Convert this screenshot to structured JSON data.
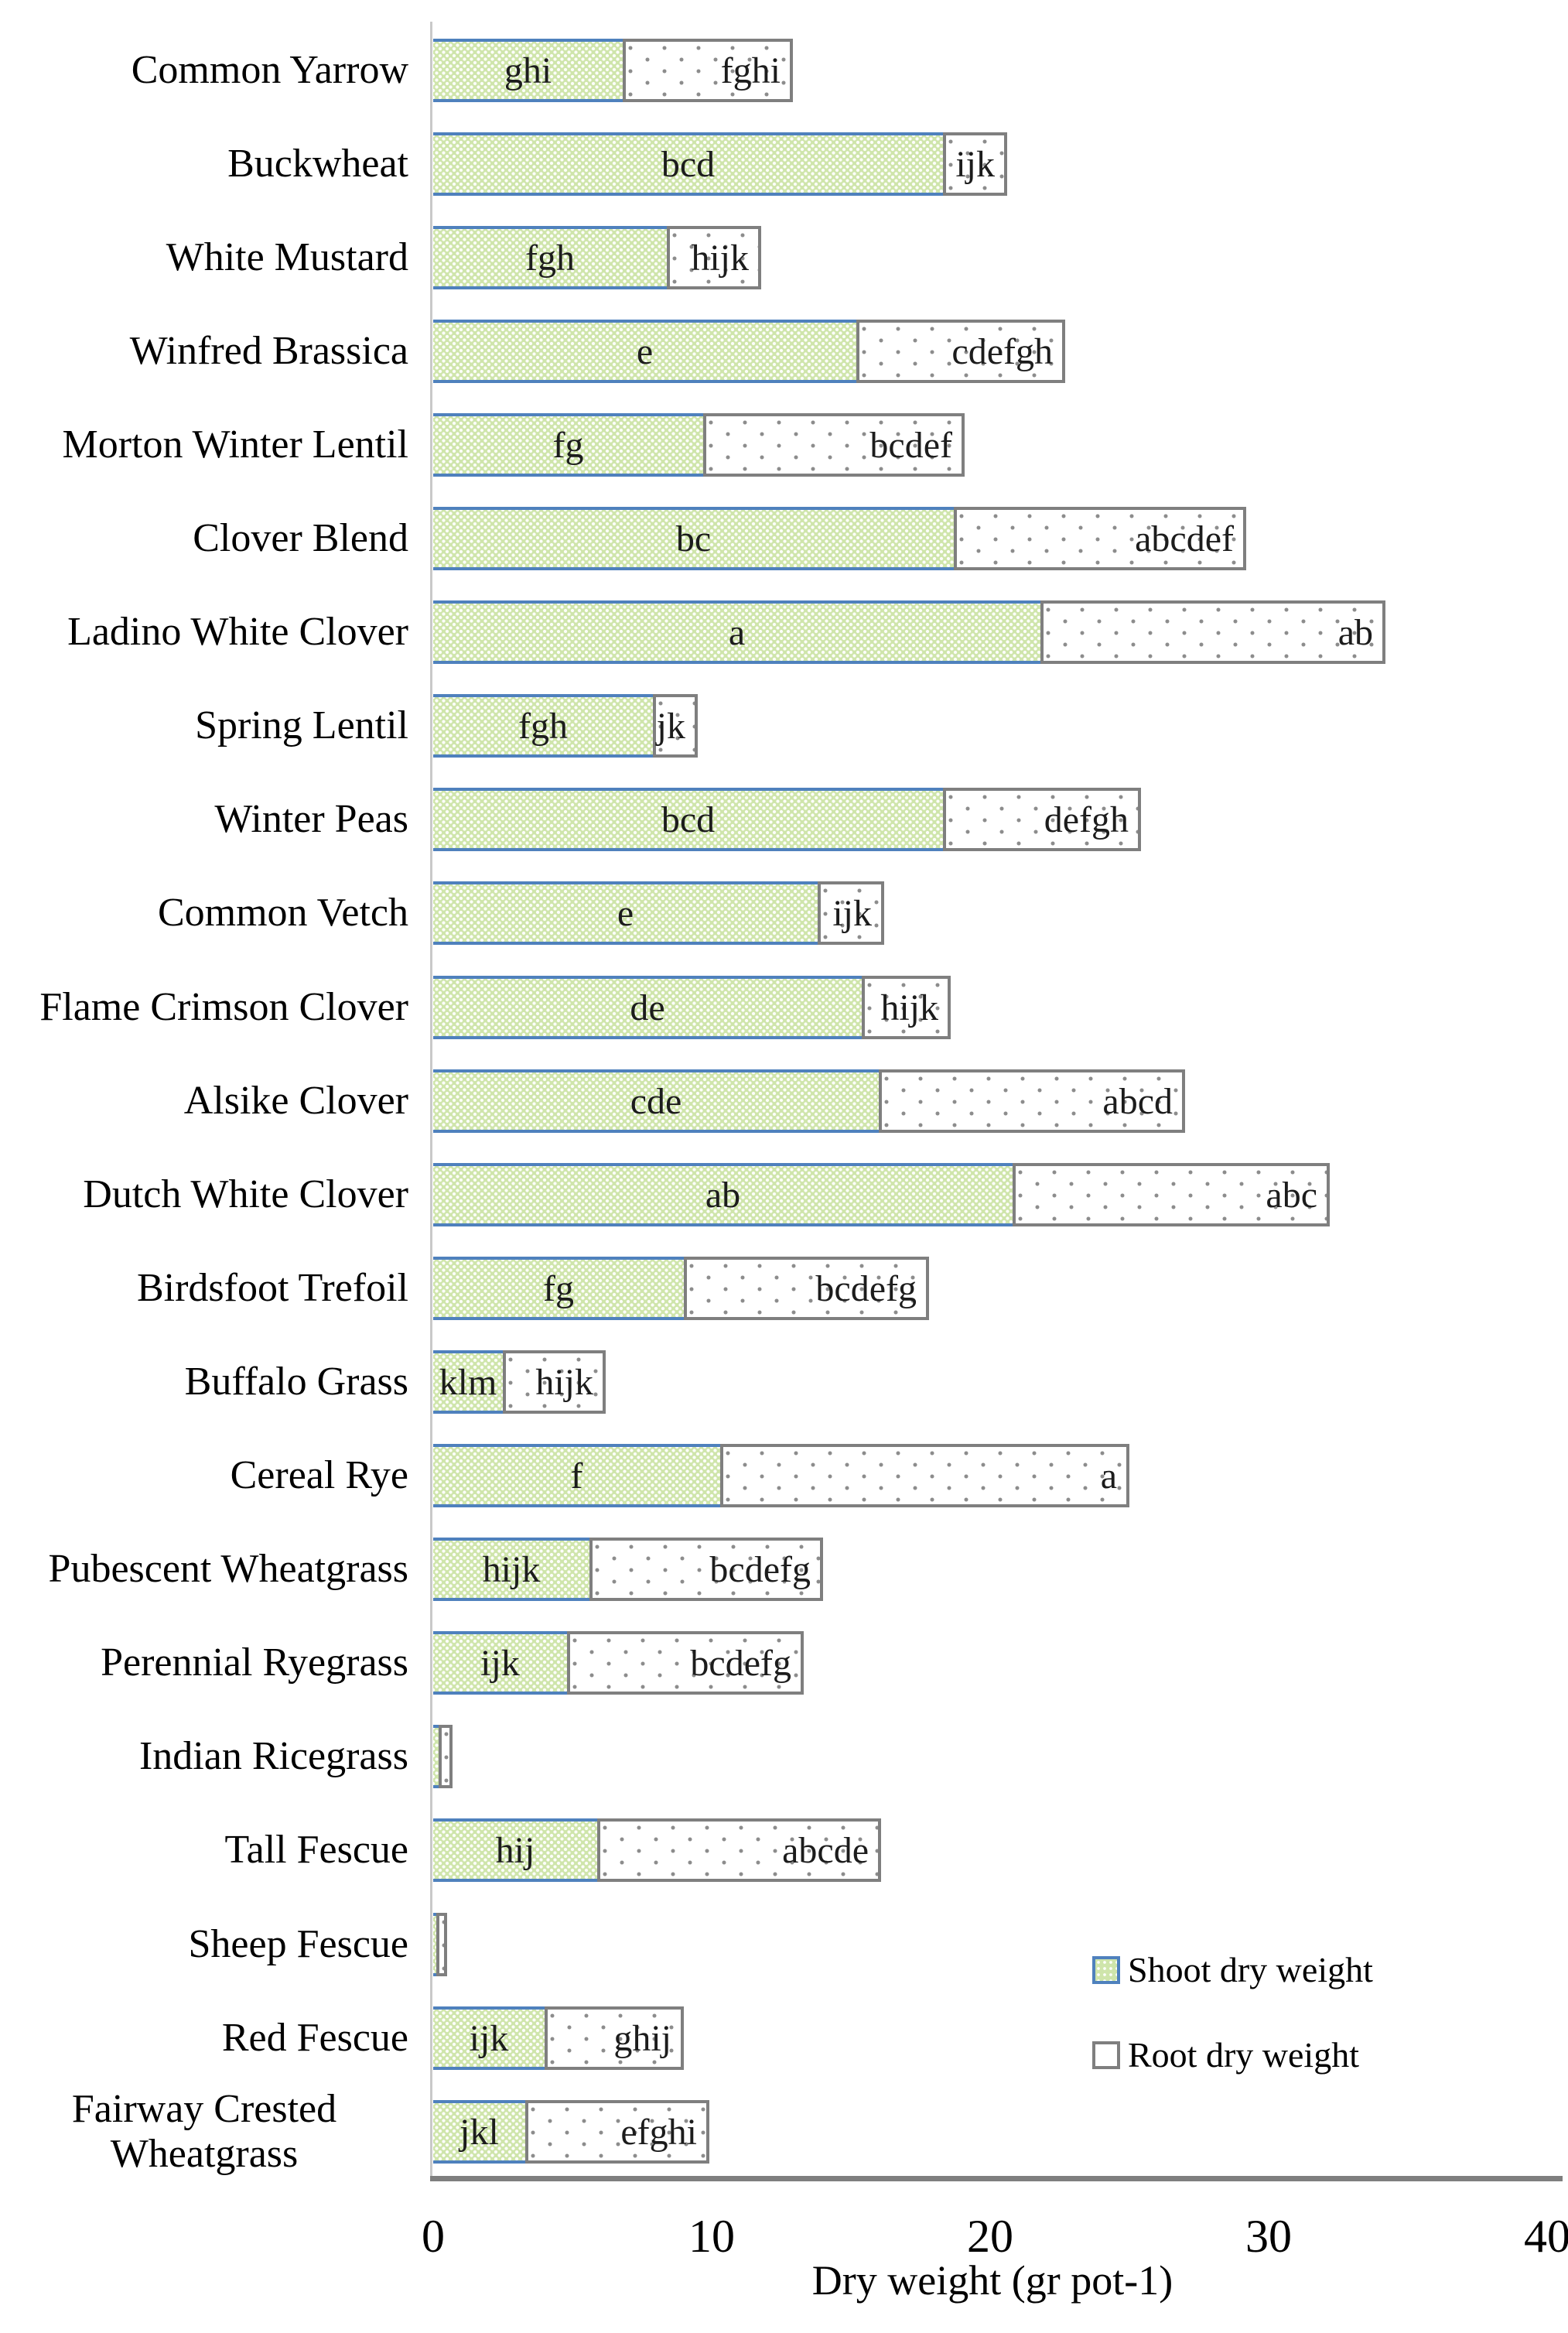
{
  "chart_data": {
    "type": "bar",
    "orientation": "horizontal",
    "stacked": true,
    "title": "",
    "xlabel": "Dry weight (gr pot-1)",
    "xlim": [
      0,
      40
    ],
    "xticks": [
      0,
      10,
      20,
      30,
      40
    ],
    "grid": false,
    "legend_position": "inside bottom-right",
    "categories": [
      "Common Yarrow",
      "Buckwheat",
      "White Mustard",
      "Winfred Brassica",
      "Morton Winter Lentil",
      "Clover Blend",
      "Ladino White Clover",
      "Spring Lentil",
      "Winter Peas",
      "Common Vetch",
      "Flame Crimson Clover",
      "Alsike Clover",
      "Dutch White Clover",
      "Birdsfoot Trefoil",
      "Buffalo Grass",
      "Cereal Rye",
      "Pubescent Wheatgrass",
      "Perennial Ryegrass",
      "Indian Ricegrass",
      "Tall Fescue",
      "Sheep Fescue",
      "Red Fescue",
      "Fairway Crested Wheatgrass"
    ],
    "series": [
      {
        "name": "Shoot dry weight",
        "fill_color": "#cfe5ab",
        "border_color": "#4f81bd",
        "pattern": "fine-white-dot-grid",
        "label_position": "center",
        "values": [
          6.8,
          18.3,
          8.4,
          15.2,
          9.7,
          18.7,
          21.8,
          7.9,
          18.3,
          13.8,
          15.4,
          16.0,
          20.8,
          9.0,
          2.5,
          10.3,
          5.6,
          4.8,
          0.2,
          5.9,
          0.1,
          4.0,
          3.3
        ],
        "labels": [
          "ghi",
          "bcd",
          "fgh",
          "e",
          "fg",
          "bc",
          "a",
          "fgh",
          "bcd",
          "e",
          "de",
          "cde",
          "ab",
          "fg",
          "klm",
          "f",
          "hijk",
          "ijk",
          "",
          "hij",
          "",
          "ijk",
          "jkl"
        ]
      },
      {
        "name": "Root dry weight",
        "fill_color": "#ffffff",
        "border_color": "#7f7f7f",
        "pattern": "sparse-gray-dots",
        "label_position": "inside-end",
        "values": [
          6.1,
          2.3,
          3.4,
          7.5,
          9.4,
          10.5,
          12.4,
          1.6,
          7.1,
          2.4,
          3.2,
          11.0,
          11.4,
          8.8,
          3.7,
          14.7,
          8.4,
          8.5,
          0.5,
          10.2,
          0.4,
          5.0,
          6.6
        ],
        "labels": [
          "fghi",
          "ijk",
          "hijk",
          "cdefgh",
          "bcdef",
          "abcdef",
          "ab",
          "jk",
          "defgh",
          "ijk",
          "hijk",
          "abcd",
          "abc",
          "bcdefg",
          "hijk",
          "a",
          "bcdefg",
          "bcdefg",
          "",
          "abcde",
          "",
          "ghij",
          "efghi"
        ]
      }
    ]
  }
}
